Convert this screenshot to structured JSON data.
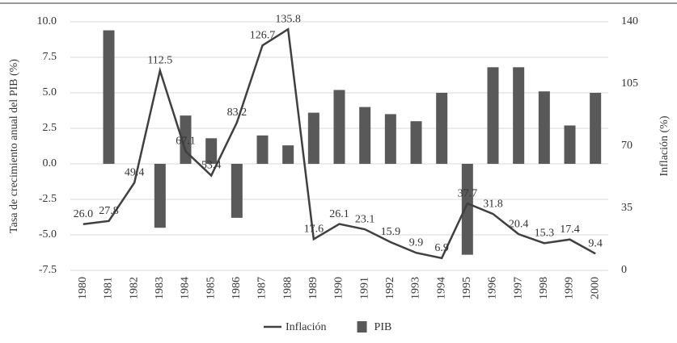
{
  "chart_data": {
    "type": "bar_line",
    "y_label": "Tasa de crecimiento anual del PIB (%)",
    "y2_label": "Inflación (%)",
    "categories": [
      "1980",
      "1981",
      "1982",
      "1983",
      "1984",
      "1985",
      "1986",
      "1987",
      "1988",
      "1989",
      "1990",
      "1991",
      "1992",
      "1993",
      "1994",
      "1995",
      "1996",
      "1997",
      "1998",
      "1999",
      "2000"
    ],
    "series": [
      {
        "name": "Inflación",
        "type": "line",
        "axis": "y2",
        "color": "#404040",
        "values": [
          26.0,
          27.8,
          49.4,
          112.5,
          67.1,
          53.4,
          83.2,
          126.7,
          135.8,
          17.6,
          26.1,
          23.1,
          15.9,
          9.9,
          6.9,
          37.7,
          31.8,
          20.4,
          15.3,
          17.4,
          9.4
        ],
        "value_labels": [
          "26.0",
          "27.8",
          "49.4",
          "112.5",
          "67.1",
          "53.4",
          "83.2",
          "126.7",
          "135.8",
          "17.6",
          "26.1",
          "23.1",
          "15.9",
          "9.9",
          "6.9",
          "37.7",
          "31.8",
          "20.4",
          "15.3",
          "17.4",
          "9.4"
        ]
      },
      {
        "name": "PIB",
        "type": "bar",
        "color": "#595959",
        "values": [
          null,
          9.4,
          null,
          -4.5,
          3.4,
          1.8,
          -3.8,
          2.0,
          1.3,
          3.6,
          5.2,
          4.0,
          3.5,
          3.0,
          5.0,
          -6.4,
          6.8,
          6.8,
          5.1,
          2.7,
          5.0
        ]
      }
    ],
    "ylim": [
      -7.5,
      10.0
    ],
    "yticks": [
      {
        "value": 10,
        "label": "10.0"
      },
      7.5,
      {
        "value": 5,
        "label": "5.0"
      },
      2.5,
      {
        "value": 0,
        "label": "0.0"
      },
      -2.5,
      {
        "value": -5,
        "label": "-5.0"
      },
      -7.5
    ],
    "y2lim": [
      0,
      140
    ],
    "y2ticks": [
      0,
      35,
      70,
      105,
      140
    ],
    "grid": true,
    "legend": "bottom"
  }
}
